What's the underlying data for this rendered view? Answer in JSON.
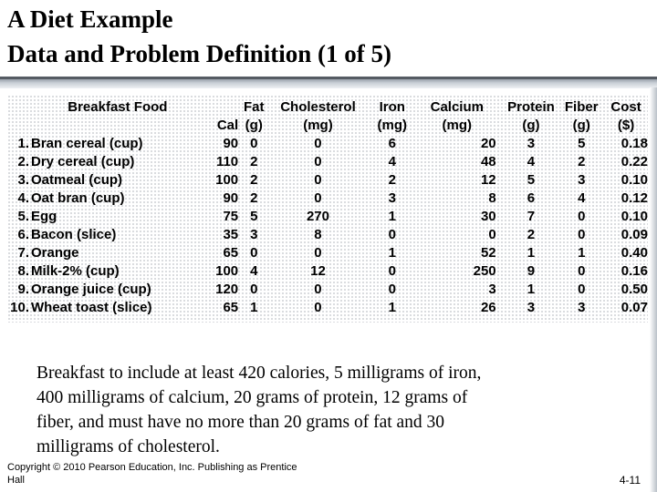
{
  "slide": {
    "title_line1": "A Diet Example",
    "title_line2": "Data and Problem Definition (1 of 5)"
  },
  "table": {
    "headers": [
      {
        "line1": "Breakfast Food",
        "line2": ""
      },
      {
        "line1": "",
        "line2": "Cal"
      },
      {
        "line1": "Fat",
        "line2": "(g)"
      },
      {
        "line1": "Cholesterol",
        "line2": "(mg)"
      },
      {
        "line1": "Iron",
        "line2": "(mg)"
      },
      {
        "line1": "Calcium",
        "line2": "(mg)"
      },
      {
        "line1": "Protein",
        "line2": "(g)"
      },
      {
        "line1": "Fiber",
        "line2": "(g)"
      },
      {
        "line1": "Cost",
        "line2": "($)"
      }
    ],
    "rows": [
      {
        "num": "1.",
        "food": "Bran cereal (cup)",
        "cal": "90",
        "fat": "0",
        "chol": "0",
        "iron": "6",
        "calcium": "20",
        "protein": "3",
        "fiber": "5",
        "cost": "0.18"
      },
      {
        "num": "2.",
        "food": "Dry cereal (cup)",
        "cal": "110",
        "fat": "2",
        "chol": "0",
        "iron": "4",
        "calcium": "48",
        "protein": "4",
        "fiber": "2",
        "cost": "0.22"
      },
      {
        "num": "3.",
        "food": "Oatmeal (cup)",
        "cal": "100",
        "fat": "2",
        "chol": "0",
        "iron": "2",
        "calcium": "12",
        "protein": "5",
        "fiber": "3",
        "cost": "0.10"
      },
      {
        "num": "4.",
        "food": "Oat bran (cup)",
        "cal": "90",
        "fat": "2",
        "chol": "0",
        "iron": "3",
        "calcium": "8",
        "protein": "6",
        "fiber": "4",
        "cost": "0.12"
      },
      {
        "num": "5.",
        "food": "Egg",
        "cal": "75",
        "fat": "5",
        "chol": "270",
        "iron": "1",
        "calcium": "30",
        "protein": "7",
        "fiber": "0",
        "cost": "0.10"
      },
      {
        "num": "6.",
        "food": "Bacon (slice)",
        "cal": "35",
        "fat": "3",
        "chol": "8",
        "iron": "0",
        "calcium": "0",
        "protein": "2",
        "fiber": "0",
        "cost": "0.09"
      },
      {
        "num": "7.",
        "food": "Orange",
        "cal": "65",
        "fat": "0",
        "chol": "0",
        "iron": "1",
        "calcium": "52",
        "protein": "1",
        "fiber": "1",
        "cost": "0.40"
      },
      {
        "num": "8.",
        "food": "Milk-2% (cup)",
        "cal": "100",
        "fat": "4",
        "chol": "12",
        "iron": "0",
        "calcium": "250",
        "protein": "9",
        "fiber": "0",
        "cost": "0.16"
      },
      {
        "num": "9.",
        "food": "Orange juice (cup)",
        "cal": "120",
        "fat": "0",
        "chol": "0",
        "iron": "0",
        "calcium": "3",
        "protein": "1",
        "fiber": "0",
        "cost": "0.50"
      },
      {
        "num": "10.",
        "food": "Wheat toast (slice)",
        "cal": "65",
        "fat": "1",
        "chol": "0",
        "iron": "1",
        "calcium": "26",
        "protein": "3",
        "fiber": "3",
        "cost": "0.07"
      }
    ]
  },
  "problem_text": [
    "Breakfast to include at least 420 calories, 5 milligrams of iron,",
    "400 milligrams of calcium, 20 grams of protein, 12 grams of",
    "fiber, and must have no more than 20 grams of fat and 30",
    "milligrams of cholesterol."
  ],
  "footer": {
    "copyright_line1": "Copyright © 2010 Pearson Education, Inc. Publishing as Prentice",
    "copyright_line2": "Hall",
    "page_number": "4-11"
  }
}
